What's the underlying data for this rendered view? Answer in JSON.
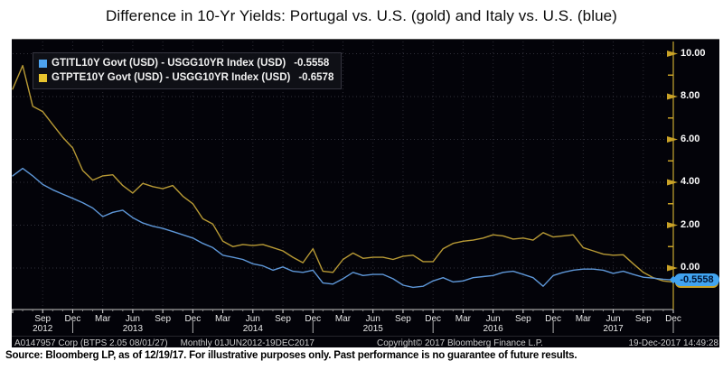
{
  "title": "Difference in 10-Yr Yields: Portugal vs. U.S. (gold) and Italy vs. U.S. (blue)",
  "legend": {
    "items": [
      {
        "name": "italy-us",
        "swatch_color": "#4da3f0",
        "label": "GTITL10Y Govt (USD) - USGG10YR Index (USD)",
        "value": "-0.5558"
      },
      {
        "name": "portugal-us",
        "swatch_color": "#e8c42e",
        "label": "GTPTE10Y Govt (USD) - USGG10YR Index (USD)",
        "value": "-0.6578"
      }
    ]
  },
  "y_axis": {
    "major_labels": [
      {
        "v": 10,
        "label": "10.00"
      },
      {
        "v": 8,
        "label": "8.00"
      },
      {
        "v": 6,
        "label": "6.00"
      },
      {
        "v": 4,
        "label": "4.00"
      },
      {
        "v": 2,
        "label": "2.00"
      },
      {
        "v": 0,
        "label": "0.00"
      }
    ],
    "minor_interval": 1,
    "badge": "-0.5558",
    "badge_color": "#41a4f0",
    "axis_color": "#a08628",
    "tick_color": "#c9a227"
  },
  "x_axis": {
    "ticks": [
      {
        "m": 3,
        "label": "Sep",
        "year": "2012"
      },
      {
        "m": 6,
        "label": "Dec"
      },
      {
        "m": 9,
        "label": "Mar"
      },
      {
        "m": 12,
        "label": "Jun",
        "year": "2013"
      },
      {
        "m": 15,
        "label": "Sep"
      },
      {
        "m": 18,
        "label": "Dec"
      },
      {
        "m": 21,
        "label": "Mar"
      },
      {
        "m": 24,
        "label": "Jun",
        "year": "2014"
      },
      {
        "m": 27,
        "label": "Sep"
      },
      {
        "m": 30,
        "label": "Dec"
      },
      {
        "m": 33,
        "label": "Mar"
      },
      {
        "m": 36,
        "label": "Jun",
        "year": "2015"
      },
      {
        "m": 39,
        "label": "Sep"
      },
      {
        "m": 42,
        "label": "Dec"
      },
      {
        "m": 45,
        "label": "Mar"
      },
      {
        "m": 48,
        "label": "Jun",
        "year": "2016"
      },
      {
        "m": 51,
        "label": "Sep"
      },
      {
        "m": 54,
        "label": "Dec"
      },
      {
        "m": 57,
        "label": "Mar"
      },
      {
        "m": 60,
        "label": "Jun",
        "year": "2017"
      },
      {
        "m": 63,
        "label": "Sep"
      },
      {
        "m": 66,
        "label": "Dec"
      }
    ],
    "year_dividers_m": [
      6,
      18,
      30,
      42,
      54,
      66
    ]
  },
  "status_bar": {
    "left": "A0147957 Corp (BTPS 2.05 08/01/27)",
    "period": "Monthly 01JUN2012-19DEC2017",
    "center": "Copyright© 2017 Bloomberg Finance L.P.",
    "right": "19-Dec-2017 14:49:28"
  },
  "source_note": "Source: Bloomberg LP, as of 12/19/17. For illustrative purposes only. Past performance is no guarantee of future results.",
  "chart_data": {
    "type": "line",
    "x_unit": "month",
    "x_start": "2012-06",
    "x_end": "2017-12",
    "x_interval_months": 1,
    "n_points": 67,
    "ylim": [
      -1.9,
      10.5
    ],
    "yticks": [
      0,
      2,
      4,
      6,
      8,
      10
    ],
    "grid": "dotted",
    "legend_position": "top-left",
    "series": [
      {
        "name": "GTITL10Y Govt (USD) - USGG10YR Index (USD)",
        "country": "Italy vs. U.S.",
        "color": "#5e97d8",
        "last_value": -0.5558,
        "values": [
          4.3,
          4.65,
          4.3,
          3.9,
          3.65,
          3.45,
          3.25,
          3.05,
          2.8,
          2.4,
          2.6,
          2.7,
          2.35,
          2.1,
          1.95,
          1.85,
          1.7,
          1.55,
          1.4,
          1.15,
          0.95,
          0.6,
          0.5,
          0.4,
          0.2,
          0.1,
          -0.1,
          0.05,
          -0.15,
          -0.2,
          -0.1,
          -0.7,
          -0.75,
          -0.5,
          -0.2,
          -0.35,
          -0.3,
          -0.3,
          -0.5,
          -0.8,
          -0.9,
          -0.85,
          -0.6,
          -0.45,
          -0.65,
          -0.6,
          -0.45,
          -0.4,
          -0.35,
          -0.2,
          -0.15,
          -0.3,
          -0.45,
          -0.85,
          -0.35,
          -0.2,
          -0.1,
          -0.05,
          -0.05,
          -0.1,
          -0.25,
          -0.15,
          -0.3,
          -0.43,
          -0.47,
          -0.52,
          -0.5558
        ]
      },
      {
        "name": "GTPTE10Y Govt (USD) - USGG10YR Index (USD)",
        "country": "Portugal vs. U.S.",
        "color": "#b89a35",
        "last_value": -0.6578,
        "values": [
          8.35,
          9.45,
          7.55,
          7.3,
          6.7,
          6.1,
          5.6,
          4.55,
          4.1,
          4.3,
          4.35,
          3.85,
          3.5,
          3.95,
          3.8,
          3.7,
          3.85,
          3.35,
          3.0,
          2.3,
          2.05,
          1.25,
          1.0,
          1.1,
          1.05,
          1.1,
          0.95,
          0.8,
          0.5,
          0.25,
          0.9,
          -0.15,
          -0.2,
          0.4,
          0.7,
          0.45,
          0.5,
          0.5,
          0.4,
          0.55,
          0.6,
          0.3,
          0.3,
          0.9,
          1.15,
          1.25,
          1.3,
          1.4,
          1.55,
          1.5,
          1.35,
          1.4,
          1.3,
          1.65,
          1.45,
          1.5,
          1.55,
          0.95,
          0.8,
          0.65,
          0.6,
          0.62,
          0.2,
          -0.2,
          -0.45,
          -0.6,
          -0.6578
        ]
      }
    ]
  }
}
